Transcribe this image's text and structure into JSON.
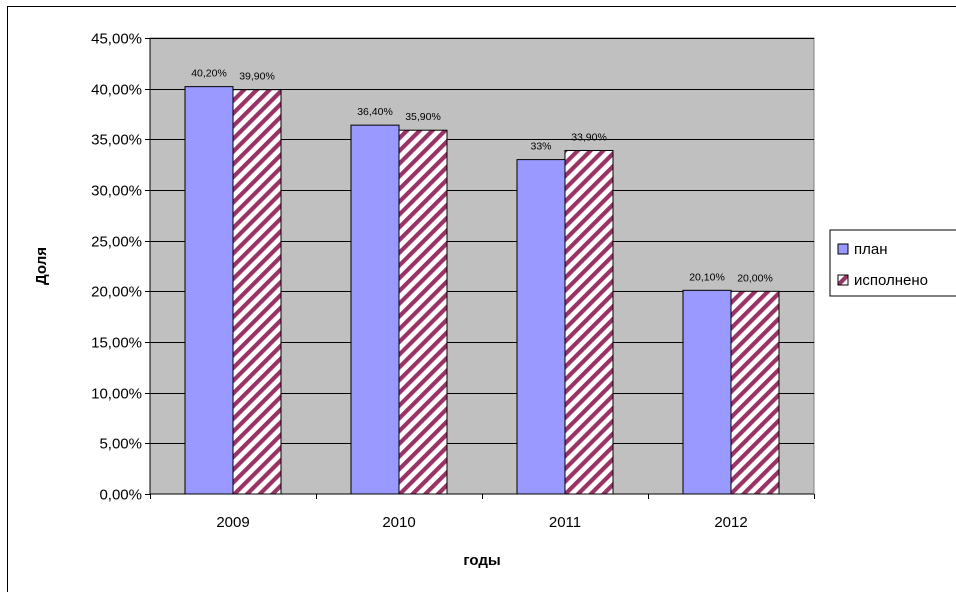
{
  "chart_data": {
    "type": "bar",
    "categories": [
      "2009",
      "2010",
      "2011",
      "2012"
    ],
    "series": [
      {
        "name": "план",
        "values": [
          40.2,
          36.4,
          33.0,
          20.1
        ],
        "labels": [
          "40,20%",
          "36,40%",
          "33%",
          "20,10%"
        ],
        "color": "#9999ff",
        "pattern": "solid"
      },
      {
        "name": "исполнено",
        "values": [
          39.9,
          35.9,
          33.9,
          20.0
        ],
        "labels": [
          "39,90%",
          "35,90%",
          "33,90%",
          "20,00%"
        ],
        "color": "#993366",
        "pattern": "diagonal-stripes"
      }
    ],
    "xlabel": "годы",
    "ylabel": "Доля",
    "ylim": [
      0,
      45
    ],
    "yticks": [
      0,
      5,
      10,
      15,
      20,
      25,
      30,
      35,
      40,
      45
    ],
    "ytick_labels": [
      "0,00%",
      "5,00%",
      "10,00%",
      "15,00%",
      "20,00%",
      "25,00%",
      "30,00%",
      "35,00%",
      "40,00%",
      "45,00%"
    ],
    "grid": true,
    "plot_background": "#c0c0c0",
    "legend_position": "right"
  }
}
